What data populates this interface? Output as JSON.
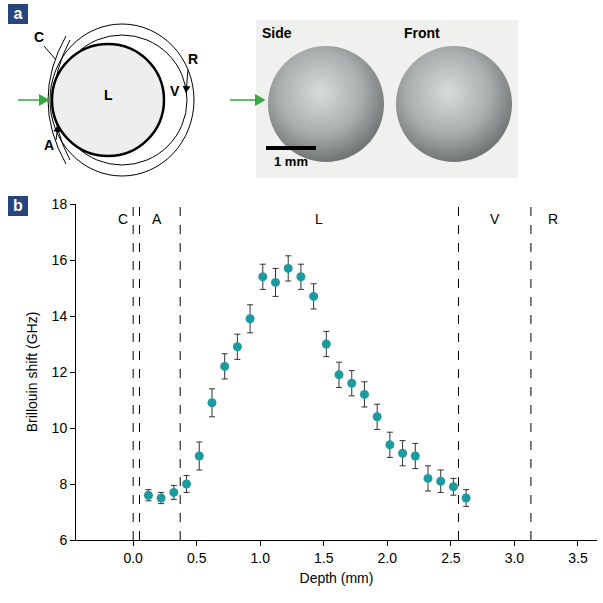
{
  "panel_letters": [
    "a",
    "b"
  ],
  "diagram": {
    "eye_labels": [
      "C",
      "L",
      "V",
      "R",
      "A"
    ],
    "photo_labels": [
      "Side",
      "Front"
    ],
    "scale_bar": "1 mm"
  },
  "chart_data": {
    "type": "scatter",
    "x_label": "Depth (mm)",
    "y_label": "Brillouin shift (GHz)",
    "x": [
      0.12,
      0.22,
      0.32,
      0.42,
      0.52,
      0.62,
      0.72,
      0.82,
      0.92,
      1.02,
      1.12,
      1.22,
      1.32,
      1.42,
      1.52,
      1.62,
      1.72,
      1.82,
      1.92,
      2.02,
      2.12,
      2.22,
      2.32,
      2.42,
      2.52,
      2.62
    ],
    "values": [
      7.6,
      7.5,
      7.7,
      8.0,
      9.0,
      10.9,
      12.2,
      12.9,
      13.9,
      15.4,
      15.2,
      15.7,
      15.4,
      14.7,
      13.0,
      11.9,
      11.6,
      11.2,
      10.4,
      9.4,
      9.1,
      9.0,
      8.2,
      8.1,
      7.9,
      7.5
    ],
    "errors": [
      0.2,
      0.2,
      0.25,
      0.3,
      0.5,
      0.5,
      0.45,
      0.45,
      0.5,
      0.45,
      0.5,
      0.45,
      0.45,
      0.45,
      0.45,
      0.45,
      0.45,
      0.45,
      0.45,
      0.45,
      0.45,
      0.45,
      0.45,
      0.4,
      0.3,
      0.3
    ],
    "color": "#1d9aa0",
    "marker": "circle",
    "xlim": [
      -0.45,
      3.65
    ],
    "xticks": [
      {
        "value": 0,
        "label": "0.0"
      },
      0.5,
      {
        "value": 1,
        "label": "1.0"
      },
      1.5,
      {
        "value": 2,
        "label": "2.0"
      },
      2.5,
      {
        "value": 3,
        "label": "3.0"
      },
      3.5
    ],
    "ylim": [
      6,
      18
    ],
    "yticks": [
      6,
      8,
      10,
      12,
      14,
      16,
      18
    ],
    "grid": false,
    "boundaries": [
      0.0,
      0.05,
      0.37,
      2.56,
      3.13
    ],
    "line_style": "dash",
    "annotations": [
      {
        "text": "C",
        "x": -0.08
      },
      {
        "text": "A",
        "x": 0.19
      },
      {
        "text": "L",
        "x": 1.46
      },
      {
        "text": "V",
        "x": 2.85
      },
      {
        "text": "R",
        "x": 3.3
      }
    ]
  }
}
